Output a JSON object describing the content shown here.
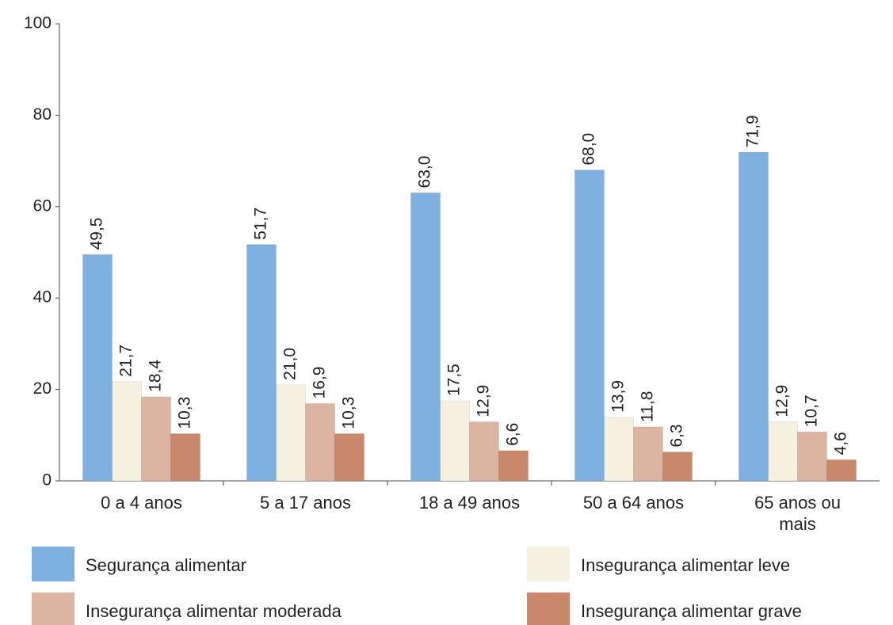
{
  "chart_data": {
    "type": "bar",
    "categories": [
      "0 a 4 anos",
      "5 a 17 anos",
      "18 a 49 anos",
      "50 a 64 anos",
      "65 anos ou mais"
    ],
    "series": [
      {
        "name": "Segurança alimentar",
        "color": "#7fb1e0",
        "values": [
          49.5,
          51.7,
          63.0,
          68.0,
          71.9
        ],
        "value_labels": [
          "49,5",
          "51,7",
          "63,0",
          "68,0",
          "71,9"
        ]
      },
      {
        "name": "Insegurança alimentar leve",
        "color": "#f6f0e0",
        "values": [
          21.7,
          21.0,
          17.5,
          13.9,
          12.9
        ],
        "value_labels": [
          "21,7",
          "21,0",
          "17,5",
          "13,9",
          "12,9"
        ]
      },
      {
        "name": "Insegurança alimentar moderada",
        "color": "#dcb5a2",
        "values": [
          18.4,
          16.9,
          12.9,
          11.8,
          10.7
        ],
        "value_labels": [
          "18,4",
          "16,9",
          "12,9",
          "11,8",
          "10,7"
        ]
      },
      {
        "name": "Insegurança alimentar grave",
        "color": "#c9886c",
        "values": [
          10.3,
          10.3,
          6.6,
          6.3,
          4.6
        ],
        "value_labels": [
          "10,3",
          "10,3",
          "6,6",
          "6,3",
          "4,6"
        ]
      }
    ],
    "ylim": [
      0,
      100
    ],
    "yticks": [
      0,
      20,
      40,
      60,
      80,
      100
    ],
    "legend": "bottom"
  }
}
